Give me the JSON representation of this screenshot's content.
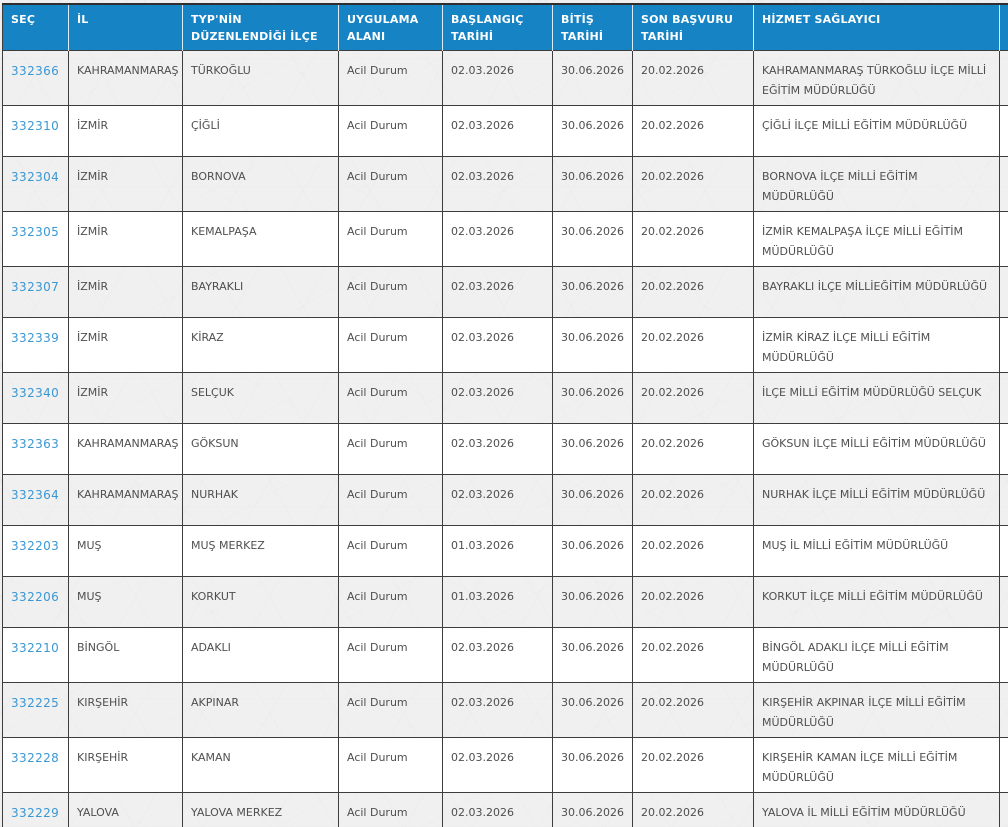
{
  "table": {
    "columns": [
      {
        "key": "sec",
        "label": "SEÇ"
      },
      {
        "key": "il",
        "label": "İL"
      },
      {
        "key": "ilce",
        "label": "TYP'NİN DÜZENLENDİĞİ İLÇE"
      },
      {
        "key": "uygulama_alani",
        "label": "UYGULAMA ALANI"
      },
      {
        "key": "baslangic_tarihi",
        "label": "BAŞLANGIÇ TARİHİ"
      },
      {
        "key": "bitis_tarihi",
        "label": "BİTİŞ TARİHİ"
      },
      {
        "key": "son_basvuru_tarihi",
        "label": "SON BAŞVURU TARİHİ"
      },
      {
        "key": "hizmet_saglayici",
        "label": "HİZMET SAĞLAYICI"
      },
      {
        "key": "islem",
        "label": ""
      }
    ],
    "rows": [
      {
        "sec": "332366",
        "il": "KAHRAMANMARAŞ",
        "ilce": "TÜRKOĞLU",
        "uygulama_alani": "Acil Durum",
        "baslangic_tarihi": "02.03.2026",
        "bitis_tarihi": "30.06.2026",
        "son_basvuru_tarihi": "20.02.2026",
        "hizmet_saglayici": "KAHRAMANMARAŞ TÜRKOĞLU İLÇE MİLLİ EĞİTİM MÜDÜRLÜĞÜ"
      },
      {
        "sec": "332310",
        "il": "İZMİR",
        "ilce": "ÇİĞLİ",
        "uygulama_alani": "Acil Durum",
        "baslangic_tarihi": "02.03.2026",
        "bitis_tarihi": "30.06.2026",
        "son_basvuru_tarihi": "20.02.2026",
        "hizmet_saglayici": "ÇİĞLİ İLÇE MİLLİ EĞİTİM MÜDÜRLÜĞÜ"
      },
      {
        "sec": "332304",
        "il": "İZMİR",
        "ilce": "BORNOVA",
        "uygulama_alani": "Acil Durum",
        "baslangic_tarihi": "02.03.2026",
        "bitis_tarihi": "30.06.2026",
        "son_basvuru_tarihi": "20.02.2026",
        "hizmet_saglayici": "BORNOVA İLÇE MİLLİ EĞİTİM MÜDÜRLÜĞÜ"
      },
      {
        "sec": "332305",
        "il": "İZMİR",
        "ilce": "KEMALPAŞA",
        "uygulama_alani": "Acil Durum",
        "baslangic_tarihi": "02.03.2026",
        "bitis_tarihi": "30.06.2026",
        "son_basvuru_tarihi": "20.02.2026",
        "hizmet_saglayici": "İZMİR KEMALPAŞA İLÇE MİLLİ EĞİTİM MÜDÜRLÜĞÜ"
      },
      {
        "sec": "332307",
        "il": "İZMİR",
        "ilce": "BAYRAKLI",
        "uygulama_alani": "Acil Durum",
        "baslangic_tarihi": "02.03.2026",
        "bitis_tarihi": "30.06.2026",
        "son_basvuru_tarihi": "20.02.2026",
        "hizmet_saglayici": "BAYRAKLI İLÇE MİLLİEĞİTİM MÜDÜRLÜĞÜ"
      },
      {
        "sec": "332339",
        "il": "İZMİR",
        "ilce": "KİRAZ",
        "uygulama_alani": "Acil Durum",
        "baslangic_tarihi": "02.03.2026",
        "bitis_tarihi": "30.06.2026",
        "son_basvuru_tarihi": "20.02.2026",
        "hizmet_saglayici": "İZMİR KİRAZ İLÇE MİLLİ EĞİTİM MÜDÜRLÜĞÜ"
      },
      {
        "sec": "332340",
        "il": "İZMİR",
        "ilce": "SELÇUK",
        "uygulama_alani": "Acil Durum",
        "baslangic_tarihi": "02.03.2026",
        "bitis_tarihi": "30.06.2026",
        "son_basvuru_tarihi": "20.02.2026",
        "hizmet_saglayici": "İLÇE MİLLİ EĞİTİM MÜDÜRLÜĞÜ SELÇUK"
      },
      {
        "sec": "332363",
        "il": "KAHRAMANMARAŞ",
        "ilce": "GÖKSUN",
        "uygulama_alani": "Acil Durum",
        "baslangic_tarihi": "02.03.2026",
        "bitis_tarihi": "30.06.2026",
        "son_basvuru_tarihi": "20.02.2026",
        "hizmet_saglayici": "GÖKSUN İLÇE MİLLİ EĞİTİM MÜDÜRLÜĞÜ"
      },
      {
        "sec": "332364",
        "il": "KAHRAMANMARAŞ",
        "ilce": "NURHAK",
        "uygulama_alani": "Acil Durum",
        "baslangic_tarihi": "02.03.2026",
        "bitis_tarihi": "30.06.2026",
        "son_basvuru_tarihi": "20.02.2026",
        "hizmet_saglayici": "NURHAK İLÇE MİLLİ EĞİTİM MÜDÜRLÜĞÜ"
      },
      {
        "sec": "332203",
        "il": "MUŞ",
        "ilce": "MUŞ MERKEZ",
        "uygulama_alani": "Acil Durum",
        "baslangic_tarihi": "01.03.2026",
        "bitis_tarihi": "30.06.2026",
        "son_basvuru_tarihi": "20.02.2026",
        "hizmet_saglayici": "MUŞ İL MİLLİ EĞİTİM MÜDÜRLÜĞÜ"
      },
      {
        "sec": "332206",
        "il": "MUŞ",
        "ilce": "KORKUT",
        "uygulama_alani": "Acil Durum",
        "baslangic_tarihi": "01.03.2026",
        "bitis_tarihi": "30.06.2026",
        "son_basvuru_tarihi": "20.02.2026",
        "hizmet_saglayici": "KORKUT İLÇE MİLLİ EĞİTİM MÜDÜRLÜĞÜ"
      },
      {
        "sec": "332210",
        "il": "BİNGÖL",
        "ilce": "ADAKLI",
        "uygulama_alani": "Acil Durum",
        "baslangic_tarihi": "02.03.2026",
        "bitis_tarihi": "30.06.2026",
        "son_basvuru_tarihi": "20.02.2026",
        "hizmet_saglayici": "BİNGÖL ADAKLI İLÇE MİLLİ EĞİTİM MÜDÜRLÜĞÜ"
      },
      {
        "sec": "332225",
        "il": "KIRŞEHİR",
        "ilce": "AKPINAR",
        "uygulama_alani": "Acil Durum",
        "baslangic_tarihi": "02.03.2026",
        "bitis_tarihi": "30.06.2026",
        "son_basvuru_tarihi": "20.02.2026",
        "hizmet_saglayici": "KIRŞEHİR AKPINAR İLÇE MİLLİ EĞİTİM MÜDÜRLÜĞÜ"
      },
      {
        "sec": "332228",
        "il": "KIRŞEHİR",
        "ilce": "KAMAN",
        "uygulama_alani": "Acil Durum",
        "baslangic_tarihi": "02.03.2026",
        "bitis_tarihi": "30.06.2026",
        "son_basvuru_tarihi": "20.02.2026",
        "hizmet_saglayici": "KIRŞEHİR KAMAN İLÇE MİLLİ EĞİTİM MÜDÜRLÜĞÜ"
      },
      {
        "sec": "332229",
        "il": "YALOVA",
        "ilce": "YALOVA MERKEZ",
        "uygulama_alani": "Acil Durum",
        "baslangic_tarihi": "02.03.2026",
        "bitis_tarihi": "30.06.2026",
        "son_basvuru_tarihi": "20.02.2026",
        "hizmet_saglayici": "YALOVA İL MİLLİ EĞİTİM MÜDÜRLÜĞÜ"
      }
    ]
  },
  "colors": {
    "header_bg": "#1583c4",
    "link": "#3b97d3",
    "body_text": "#4f4f4f",
    "border": "#3d3d3d",
    "page_bg": "#efefef"
  }
}
